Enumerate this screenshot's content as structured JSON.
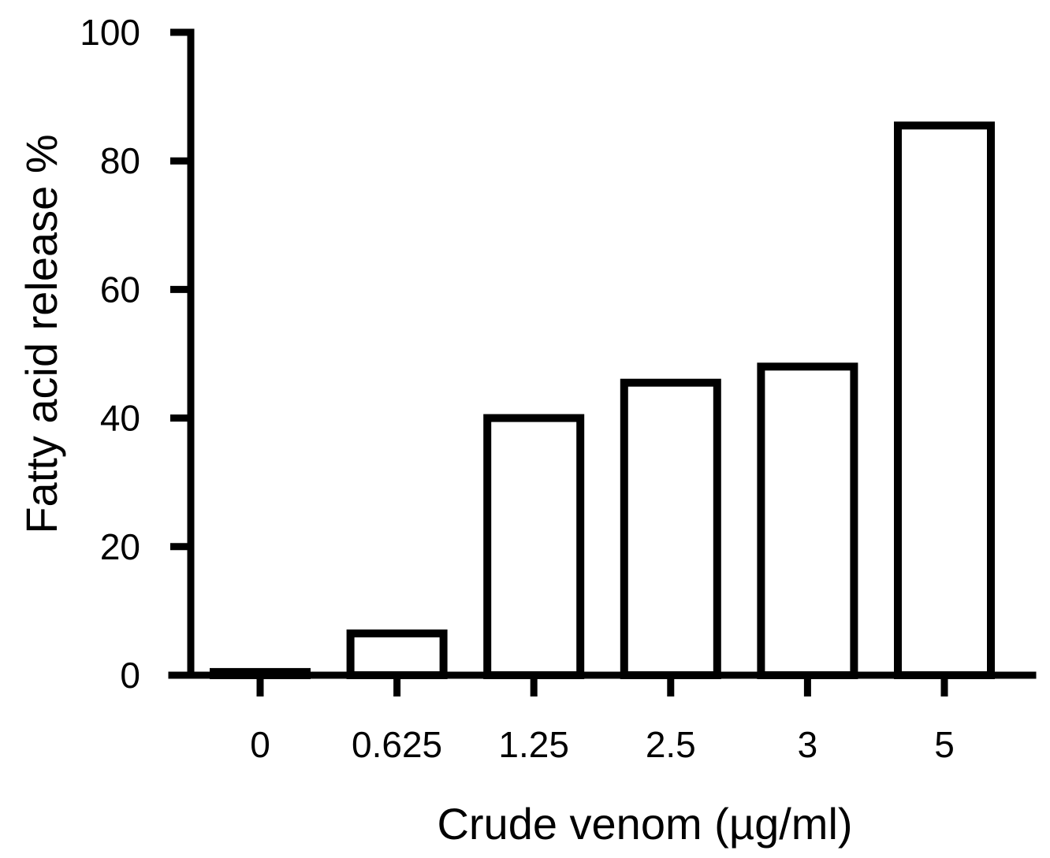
{
  "chart_data": {
    "type": "bar",
    "title": "",
    "xlabel": "Crude venom (µg/ml)",
    "ylabel": "Fatty acid release %",
    "categories": [
      "0",
      "0.625",
      "1.25",
      "2.5",
      "3",
      "5"
    ],
    "values": [
      0.5,
      6.5,
      40,
      45.5,
      48,
      85.5
    ],
    "ylim": [
      0,
      100
    ],
    "yticks": [
      "0",
      "20",
      "40",
      "60",
      "80",
      "100"
    ],
    "ytick_values": [
      0,
      20,
      40,
      60,
      80,
      100
    ],
    "grid": false,
    "legend": "none",
    "bar_fill": "#ffffff",
    "bar_outline": "#000000"
  }
}
